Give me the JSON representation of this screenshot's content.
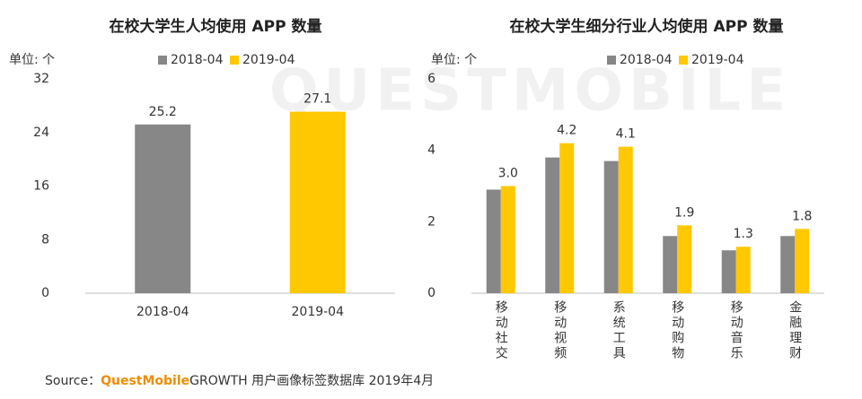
{
  "watermark": "QUESTMOBILE",
  "chart_data": [
    {
      "type": "bar",
      "title": "在校大学生人均使用 APP 数量",
      "unit": "单位: 个",
      "categories": [
        "2018-04",
        "2019-04"
      ],
      "series": [
        {
          "name": "2018-04",
          "color": "#878787",
          "values": [
            25.2,
            null
          ],
          "value_labels": [
            "25.2",
            null
          ]
        },
        {
          "name": "2019-04",
          "color": "#ffc800",
          "values": [
            null,
            27.1
          ],
          "value_labels": [
            null,
            "27.1"
          ]
        }
      ],
      "ylim": [
        0,
        32
      ],
      "yticks": [
        0,
        8,
        16,
        24,
        32
      ]
    },
    {
      "type": "bar",
      "title": "在校大学生细分行业人均使用 APP 数量",
      "unit": "单位: 个",
      "categories": [
        "移动社交",
        "移动视频",
        "系统工具",
        "移动购物",
        "移动音乐",
        "金融理财"
      ],
      "series": [
        {
          "name": "2018-04",
          "color": "#878787",
          "values": [
            2.9,
            3.8,
            3.7,
            1.6,
            1.2,
            1.6
          ]
        },
        {
          "name": "2019-04",
          "color": "#ffc800",
          "values": [
            3.0,
            4.2,
            4.1,
            1.9,
            1.3,
            1.8
          ],
          "value_labels": [
            "3.0",
            "4.2",
            "4.1",
            "1.9",
            "1.3",
            "1.8"
          ]
        }
      ],
      "ylim": [
        0,
        6
      ],
      "yticks": [
        0,
        2,
        4,
        6
      ]
    }
  ],
  "footer": {
    "prefix": "Source：",
    "brand": "QuestMobile",
    "text": "GROWTH 用户画像标签数据库  2019年4月"
  }
}
